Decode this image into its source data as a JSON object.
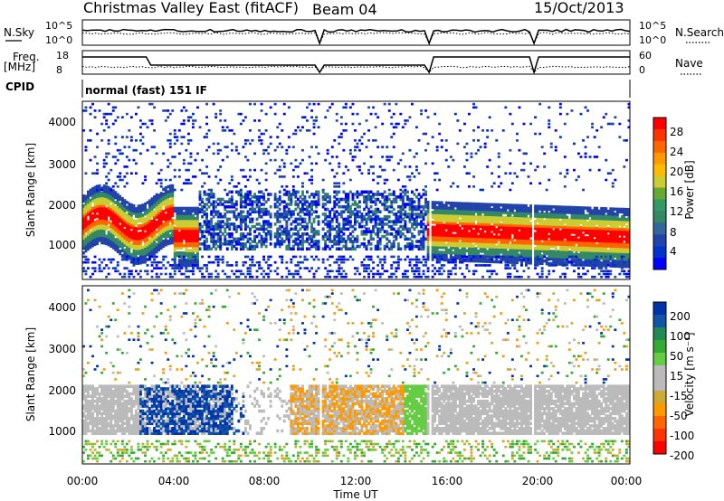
{
  "header": {
    "title": "Christmas Valley East (fitACF)",
    "beam": "Beam 04",
    "date": "15/Oct/2013"
  },
  "nsky_panel": {
    "left_label": "N.Sky",
    "right_label": "N.Search",
    "left_ticks": [
      "10^5",
      "10^0"
    ],
    "right_ticks": [
      "10^5",
      "10^0"
    ]
  },
  "freq_panel": {
    "left_label_1": "Freq.",
    "left_label_2": "[MHz]",
    "right_label": "Nave",
    "left_ticks": [
      "18",
      "8"
    ],
    "right_ticks": [
      "60",
      "0"
    ]
  },
  "cpid_panel": {
    "label": "CPID",
    "mode": "normal (fast) 151 IF"
  },
  "chart_data": [
    {
      "type": "heatmap",
      "name": "power",
      "ylabel": "Slant Range [km]",
      "yticks": [
        "4000",
        "3000",
        "2000",
        "1000"
      ],
      "ylim": [
        180,
        4500
      ],
      "xticks": [
        "00:00",
        "04:00",
        "08:00",
        "12:00",
        "16:00",
        "20:00",
        "00:00"
      ],
      "xlim_hours": [
        0,
        24
      ],
      "colorbar": {
        "title": "Power [dB]",
        "ticks": [
          "28",
          "24",
          "20",
          "16",
          "12",
          "8",
          "4"
        ],
        "colors": [
          "#ff0000",
          "#ff3300",
          "#ff6600",
          "#ff9900",
          "#ffbb00",
          "#cccc33",
          "#66aa33",
          "#339966",
          "#338866",
          "#336699",
          "#2244aa",
          "#0033cc",
          "#0000ff"
        ]
      }
    },
    {
      "type": "heatmap",
      "name": "velocity",
      "ylabel": "Slant Range [km]",
      "yticks": [
        "4000",
        "3000",
        "2000",
        "1000"
      ],
      "ylim": [
        180,
        4500
      ],
      "xticks": [
        "00:00",
        "04:00",
        "08:00",
        "12:00",
        "16:00",
        "20:00",
        "00:00"
      ],
      "xlabel": "Time UT",
      "colorbar": {
        "title": "Velocity [m s⁻¹]",
        "ticks": [
          "200",
          "100",
          "50",
          "15",
          "-15",
          "-50",
          "-100",
          "-200"
        ],
        "colors": [
          "#0033aa",
          "#1155aa",
          "#228855",
          "#33aa33",
          "#66cc44",
          "#bbbbbb",
          "#bbbbbb",
          "#ccaa33",
          "#ff9900",
          "#ff6600",
          "#ff3300",
          "#ff0000"
        ]
      }
    }
  ]
}
